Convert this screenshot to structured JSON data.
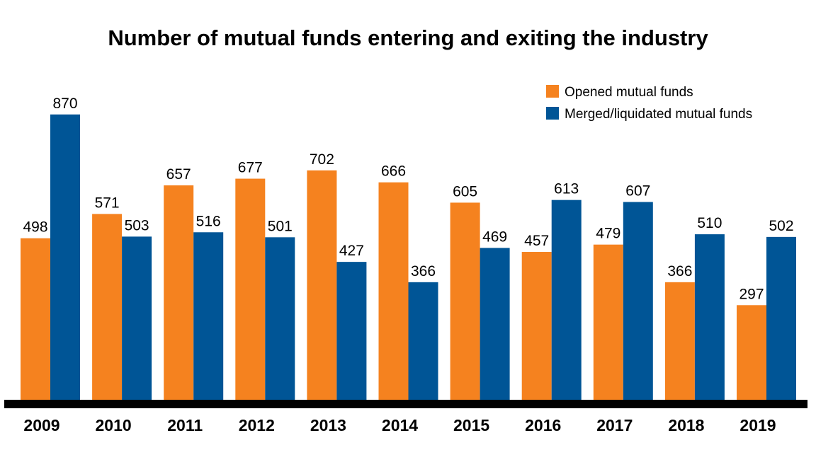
{
  "chart_data": {
    "type": "bar",
    "title": "Number of mutual funds entering and exiting the industry",
    "xlabel": "",
    "ylabel": "",
    "categories": [
      "2009",
      "2010",
      "2011",
      "2012",
      "2013",
      "2014",
      "2015",
      "2016",
      "2017",
      "2018",
      "2019"
    ],
    "series": [
      {
        "name": "Opened mutual funds",
        "color": "#F5821F",
        "values": [
          498,
          571,
          657,
          677,
          702,
          666,
          605,
          457,
          479,
          366,
          297
        ]
      },
      {
        "name": "Merged/liquidated mutual funds",
        "color": "#005596",
        "values": [
          870,
          503,
          516,
          501,
          427,
          366,
          469,
          613,
          607,
          510,
          502
        ]
      }
    ],
    "ylim": [
      0,
      870
    ],
    "grid": false,
    "data_labels": true,
    "legend_position": "top-right"
  }
}
